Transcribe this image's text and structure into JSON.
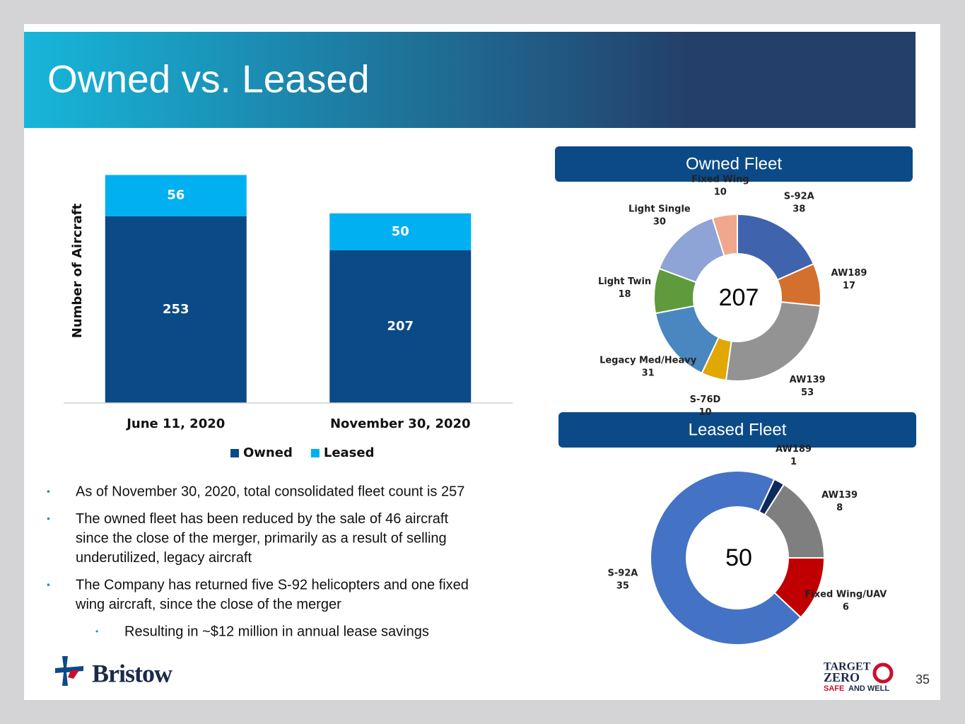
{
  "slide": {
    "title": "Owned vs. Leased",
    "bullets": [
      "As of November 30, 2020, total consolidated fleet count is 257",
      [
        "The owned fleet has been reduced by the sale of 46 aircraft",
        "since the close of the merger, primarily as a result of selling",
        "underutilized, legacy aircraft"
      ],
      [
        "The Company has returned five S-92 helicopters and one fixed",
        "wing aircraft, since the close of the merger"
      ]
    ],
    "sub_bullet": "Resulting in ~$12 million in annual lease savings",
    "logo": "Bristow",
    "badge_top": "TARGET",
    "badge_mid": "ZERO",
    "badge_safe": "SAFE",
    "badge_rest": "AND WELL",
    "page_number": "35"
  },
  "chart_data": [
    {
      "type": "bar",
      "stacked": true,
      "y_label": "Number of Aircraft",
      "categories": [
        "June 11, 2020",
        "November 30, 2020"
      ],
      "series": [
        {
          "name": "Owned",
          "color": "#0b4a87",
          "values": [
            253,
            207
          ]
        },
        {
          "name": "Leased",
          "color": "#00b0f0",
          "values": [
            56,
            50
          ]
        }
      ],
      "ylim": [
        0,
        320
      ],
      "legend": "bottom"
    },
    {
      "type": "pie",
      "donut": true,
      "title": "Owned Fleet",
      "total": 207,
      "categories": [
        "S-92A",
        "AW189",
        "AW139",
        "S-76D",
        "Legacy Med/Heavy",
        "Light Twin",
        "Light Single",
        "Fixed Wing"
      ],
      "values": [
        38,
        17,
        53,
        10,
        31,
        18,
        30,
        10
      ],
      "colors": [
        "#3f63ad",
        "#d4702e",
        "#939393",
        "#e0a800",
        "#4a86c0",
        "#5f9a3c",
        "#8ea3d6",
        "#f0a78e"
      ]
    },
    {
      "type": "pie",
      "donut": true,
      "title": "Leased Fleet",
      "total": 50,
      "categories": [
        "AW189",
        "AW139",
        "Fixed Wing/UAV",
        "S-92A"
      ],
      "values": [
        1,
        8,
        6,
        35
      ],
      "colors": [
        "#0e2a5c",
        "#7f7f7f",
        "#c00000",
        "#4472c4"
      ]
    }
  ]
}
